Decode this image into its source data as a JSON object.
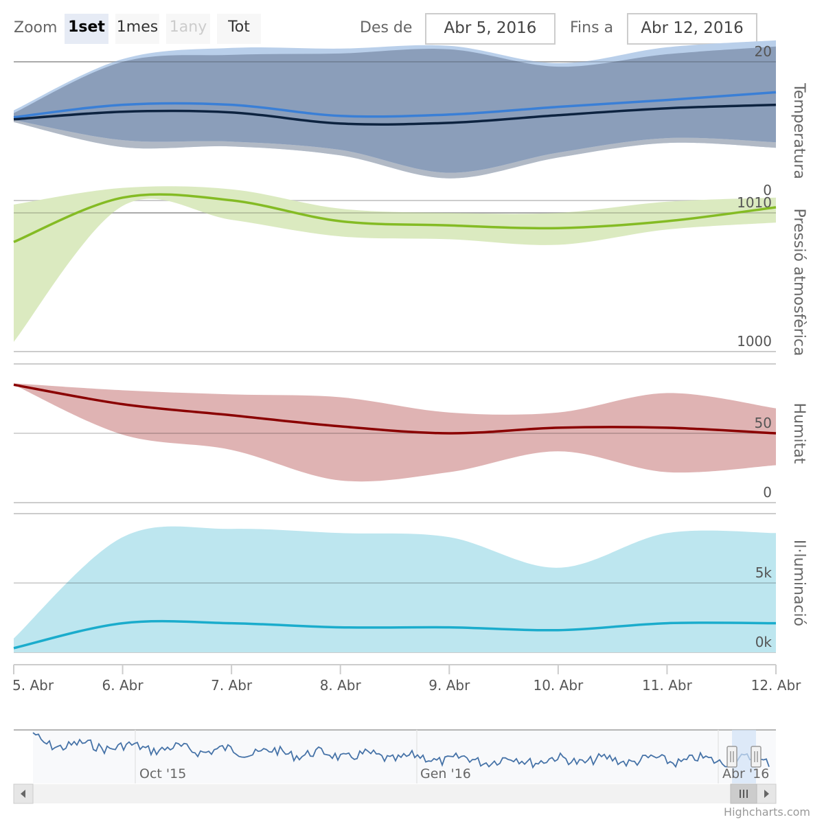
{
  "range_selector": {
    "zoom_label": "Zoom",
    "buttons": [
      "1set",
      "1mes",
      "1any",
      "Tot"
    ],
    "selected": "1set",
    "disabled": [
      "1any"
    ],
    "from_label": "Des de",
    "from_value": "Abr 5, 2016",
    "to_label": "Fins a",
    "to_value": "Abr 12, 2016"
  },
  "credits": "Highcharts.com",
  "colors": {
    "temp_range_max": "#b9cfea",
    "temp_range_mid": "#8b9eba",
    "temp_range_min": "#b1b9c5",
    "temp_avg": "#0d2340",
    "temp_line": "#3a7fd6",
    "pressure_line": "#84bb24",
    "pressure_range": "#dbeac0",
    "humidity_line": "#8a0000",
    "humidity_range": "#dfb3b3",
    "light_line": "#1baccc",
    "light_range": "#bde6ef",
    "navigator_line": "#4572a7",
    "navigator_mask": "#d2e2f7"
  },
  "chart_data": {
    "type": "area",
    "x_axis": {
      "tick_labels": [
        "5. Abr",
        "6. Abr",
        "7. Abr",
        "8. Abr",
        "9. Abr",
        "10. Abr",
        "11. Abr",
        "12. Abr"
      ],
      "x_range": [
        0,
        7
      ]
    },
    "panes": [
      {
        "title": "Temperatura",
        "ylim": [
          0,
          20
        ],
        "tick_labels": [
          "0",
          "20"
        ],
        "tick_values": [
          0,
          20
        ],
        "series": [
          {
            "role": "range_outer",
            "low": [
              11.3,
              7.7,
              7.8,
              6.5,
              3.2,
              6.2,
              8.3,
              7.6
            ],
            "high": [
              13.0,
              20.4,
              22.0,
              21.9,
              22.3,
              19.8,
              22.1,
              23.1
            ]
          },
          {
            "role": "range_inner",
            "low": [
              11.6,
              8.7,
              8.5,
              7.3,
              4.0,
              6.9,
              9.0,
              8.4
            ],
            "high": [
              12.6,
              20.0,
              21.0,
              21.2,
              21.8,
              19.3,
              21.1,
              22.2
            ]
          },
          {
            "role": "line_upper",
            "values": [
              12.0,
              13.8,
              13.8,
              12.2,
              12.4,
              13.5,
              14.5,
              15.6
            ]
          },
          {
            "role": "line_lower",
            "values": [
              11.7,
              12.8,
              12.7,
              11.1,
              11.2,
              12.3,
              13.3,
              13.8
            ]
          }
        ]
      },
      {
        "title": "Pressió atmosfèrica",
        "ylim": [
          1000,
          1010
        ],
        "tick_labels": [
          "1000",
          "1010"
        ],
        "tick_values": [
          1000,
          1010
        ],
        "series": [
          {
            "role": "range",
            "low": [
              1000.7,
              1010.5,
              1009.5,
              1008.3,
              1008.1,
              1007.7,
              1008.8,
              1009.3
            ],
            "high": [
              1010.6,
              1011.8,
              1011.7,
              1010.3,
              1010.0,
              1010.0,
              1010.8,
              1011.1
            ]
          },
          {
            "role": "line",
            "values": [
              1007.9,
              1011.1,
              1010.9,
              1009.4,
              1009.1,
              1008.9,
              1009.4,
              1010.4
            ]
          }
        ]
      },
      {
        "title": "Humitat",
        "ylim": [
          0,
          100
        ],
        "tick_labels": [
          "0",
          "50"
        ],
        "tick_values": [
          0,
          50
        ],
        "series": [
          {
            "role": "range",
            "low": [
              85,
              49,
              38,
              16,
              22,
              37,
              22,
              27
            ],
            "high": [
              86,
              81,
              78,
              76,
              65,
              65,
              79,
              68
            ]
          },
          {
            "role": "line",
            "values": [
              85,
              71,
              63,
              55,
              50,
              54,
              54,
              50
            ]
          }
        ]
      },
      {
        "title": "Il·luminació",
        "ylim": [
          0,
          10000
        ],
        "tick_labels": [
          "0k",
          "5k"
        ],
        "tick_values": [
          0,
          5000
        ],
        "series": [
          {
            "role": "range",
            "low": [
              0,
              0,
              0,
              0,
              0,
              0,
              0,
              0
            ],
            "high": [
              1000,
              8300,
              8900,
              8600,
              8300,
              6100,
              8600,
              8600
            ]
          },
          {
            "role": "line",
            "values": [
              300,
              2100,
              2100,
              1800,
              1800,
              1600,
              2100,
              2100
            ]
          }
        ]
      }
    ],
    "navigator": {
      "tick_labels": [
        "Oct '15",
        "Gen '16",
        "Abr '16"
      ],
      "selection": [
        "Abr 5, 2016",
        "Abr 12, 2016"
      ]
    }
  }
}
